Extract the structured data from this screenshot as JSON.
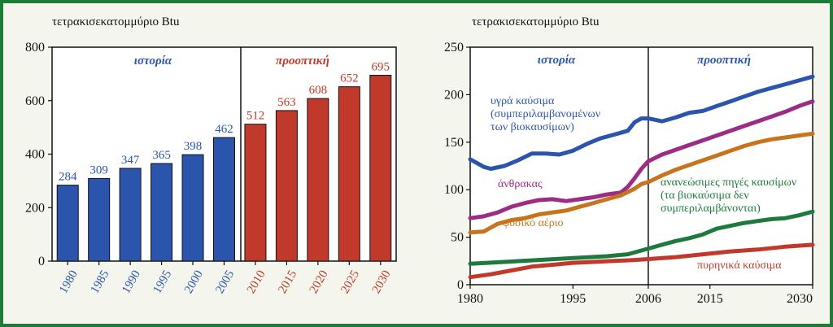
{
  "colors": {
    "frame": "#1f7a3a",
    "background": "#f4f6ee",
    "history": "#2b55ad",
    "projection": "#c0392b",
    "liquids": "#2b55ad",
    "coal": "#9b2d86",
    "natural_gas": "#c8731e",
    "renewables": "#1d7a3c",
    "nuclear": "#c0392b"
  },
  "chart_data": [
    {
      "type": "bar",
      "title": "τετρακισεκατομμύριο Btu",
      "history_label": "ιστορία",
      "projection_label": "προοπτική",
      "categories": [
        "1980",
        "1985",
        "1990",
        "1995",
        "2000",
        "2005",
        "2010",
        "2015",
        "2020",
        "2025",
        "2030"
      ],
      "values": [
        284,
        309,
        347,
        365,
        398,
        462,
        512,
        563,
        608,
        652,
        695
      ],
      "history_count": 6,
      "ylim": [
        0,
        800
      ],
      "yticks": [
        "0",
        "200",
        "400",
        "600",
        "800"
      ],
      "grid": false
    },
    {
      "type": "line",
      "title": "τετρακισεκατομμύριο Btu",
      "history_label": "ιστορία",
      "projection_label": "προοπτική",
      "divider_year": 2006,
      "xlim": [
        1980,
        2030
      ],
      "ylim": [
        0,
        250
      ],
      "xticks": [
        "1980",
        "1995",
        "2006",
        "2015",
        "2030"
      ],
      "yticks": [
        "0",
        "50",
        "100",
        "150",
        "200",
        "250"
      ],
      "grid": false,
      "series": [
        {
          "name_lines": [
            "υγρά καύσιμα",
            "(συμπεριλαμβανομένων",
            "των βιοκαυσίμων)"
          ],
          "color_key": "liquids",
          "x": [
            1980,
            1982,
            1983,
            1985,
            1987,
            1989,
            1991,
            1993,
            1995,
            1997,
            1999,
            2001,
            2003,
            2004,
            2005,
            2006,
            2008,
            2010,
            2012,
            2014,
            2016,
            2018,
            2020,
            2022,
            2024,
            2026,
            2028,
            2030
          ],
          "y": [
            132,
            124,
            122,
            125,
            131,
            138,
            138,
            137,
            141,
            148,
            154,
            158,
            162,
            171,
            175,
            175,
            172,
            176,
            181,
            183,
            188,
            193,
            198,
            203,
            207,
            211,
            215,
            219
          ]
        },
        {
          "name_lines": [
            "άνθρακας"
          ],
          "color_key": "coal",
          "x": [
            1980,
            1982,
            1984,
            1986,
            1988,
            1990,
            1992,
            1994,
            1996,
            1998,
            2000,
            2002,
            2003,
            2004,
            2005,
            2006,
            2008,
            2010,
            2012,
            2014,
            2016,
            2018,
            2020,
            2022,
            2024,
            2026,
            2028,
            2030
          ],
          "y": [
            70,
            72,
            76,
            82,
            86,
            89,
            90,
            88,
            90,
            92,
            95,
            97,
            103,
            112,
            122,
            130,
            137,
            142,
            147,
            152,
            157,
            162,
            167,
            172,
            177,
            182,
            188,
            193
          ]
        },
        {
          "name_lines": [
            "φυσικό αέριο"
          ],
          "color_key": "natural_gas",
          "x": [
            1980,
            1982,
            1984,
            1986,
            1988,
            1990,
            1992,
            1994,
            1996,
            1998,
            2000,
            2002,
            2004,
            2005,
            2006,
            2008,
            2010,
            2012,
            2014,
            2016,
            2018,
            2020,
            2022,
            2024,
            2026,
            2028,
            2030
          ],
          "y": [
            55,
            56,
            64,
            68,
            70,
            74,
            76,
            78,
            82,
            86,
            90,
            94,
            101,
            106,
            108,
            115,
            121,
            126,
            131,
            136,
            141,
            146,
            150,
            153,
            155,
            157,
            159
          ]
        },
        {
          "name_lines": [
            "ανανεώσιμες πηγές καυσίμων",
            "(τα βιοκαύσιμα δεν",
            "συμπεριλαμβάνονται)"
          ],
          "color_key": "renewables",
          "x": [
            1980,
            1985,
            1990,
            1995,
            2000,
            2003,
            2006,
            2008,
            2010,
            2012,
            2014,
            2016,
            2018,
            2020,
            2022,
            2024,
            2026,
            2028,
            2030
          ],
          "y": [
            22,
            24,
            26,
            28,
            30,
            32,
            38,
            42,
            46,
            49,
            53,
            59,
            62,
            65,
            67,
            69,
            70,
            73,
            77
          ]
        },
        {
          "name_lines": [
            "πυρηνικά καύσιμα"
          ],
          "color_key": "nuclear",
          "x": [
            1980,
            1983,
            1986,
            1989,
            1992,
            1995,
            1998,
            2001,
            2004,
            2006,
            2010,
            2014,
            2018,
            2022,
            2026,
            2030
          ],
          "y": [
            8,
            11,
            15,
            19,
            21,
            23,
            24,
            25,
            26,
            27,
            29,
            32,
            35,
            37,
            40,
            42
          ]
        }
      ]
    }
  ]
}
